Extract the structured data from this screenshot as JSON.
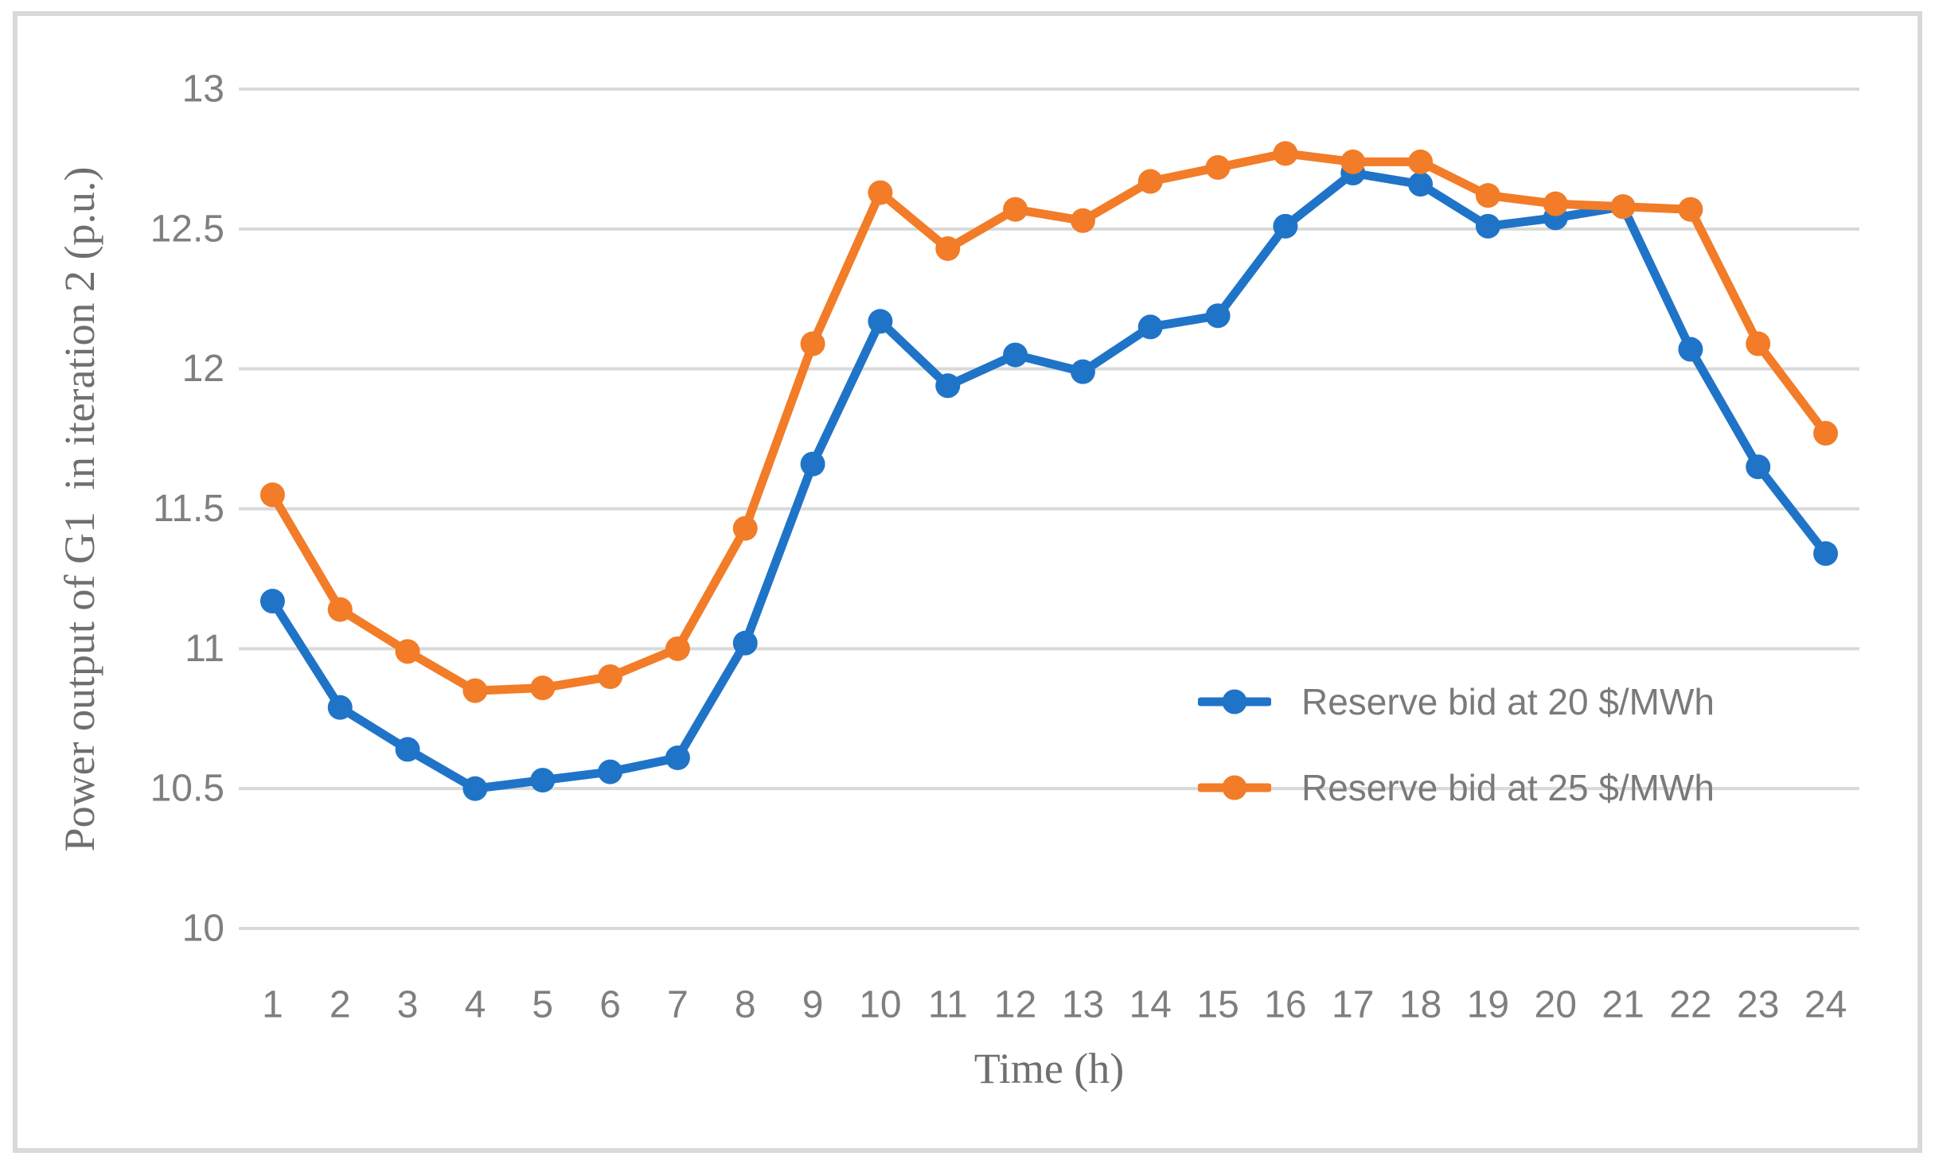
{
  "figure": {
    "background_color": "#ffffff",
    "border_color": "#d9d9d9"
  },
  "chart_data": {
    "type": "line",
    "title": "",
    "xlabel": "Time (h)",
    "ylabel": "Power output of G1  in iteration 2 (p.u.)",
    "x": [
      1,
      2,
      3,
      4,
      5,
      6,
      7,
      8,
      9,
      10,
      11,
      12,
      13,
      14,
      15,
      16,
      17,
      18,
      19,
      20,
      21,
      22,
      23,
      24
    ],
    "x_labels": [
      "1",
      "2",
      "3",
      "4",
      "5",
      "6",
      "7",
      "8",
      "9",
      "10",
      "11",
      "12",
      "13",
      "14",
      "15",
      "16",
      "17",
      "18",
      "19",
      "20",
      "21",
      "22",
      "23",
      "24"
    ],
    "series": [
      {
        "name": "Reserve bid at 20 $/MWh",
        "color": "#1f74c8",
        "marker": "circle",
        "values": [
          11.17,
          10.79,
          10.64,
          10.5,
          10.53,
          10.56,
          10.61,
          11.02,
          11.66,
          12.17,
          11.94,
          12.05,
          11.99,
          12.15,
          12.19,
          12.51,
          12.7,
          12.66,
          12.51,
          12.54,
          12.58,
          12.07,
          11.65,
          11.34
        ]
      },
      {
        "name": "Reserve bid at 25 $/MWh",
        "color": "#f27c28",
        "marker": "circle",
        "values": [
          11.55,
          11.14,
          10.99,
          10.85,
          10.86,
          10.9,
          11.0,
          11.43,
          12.09,
          12.63,
          12.43,
          12.57,
          12.53,
          12.67,
          12.72,
          12.77,
          12.74,
          12.74,
          12.62,
          12.59,
          12.58,
          12.57,
          12.09,
          11.77
        ]
      }
    ],
    "ylim": [
      10,
      13
    ],
    "yticks": [
      13,
      12.5,
      12,
      11.5,
      11,
      10.5,
      10
    ],
    "ytick_labels": [
      "13",
      "12.5",
      "12",
      "11.5",
      "11",
      "10.5",
      "10"
    ],
    "grid": "horizontal",
    "gridline_color": "#d9d9d9",
    "tick_label_color": "#7f7f7f",
    "axis_title_color": "#6f6f6f",
    "legend_position": "inside-right",
    "legend_text_color": "#7a7a7a"
  }
}
